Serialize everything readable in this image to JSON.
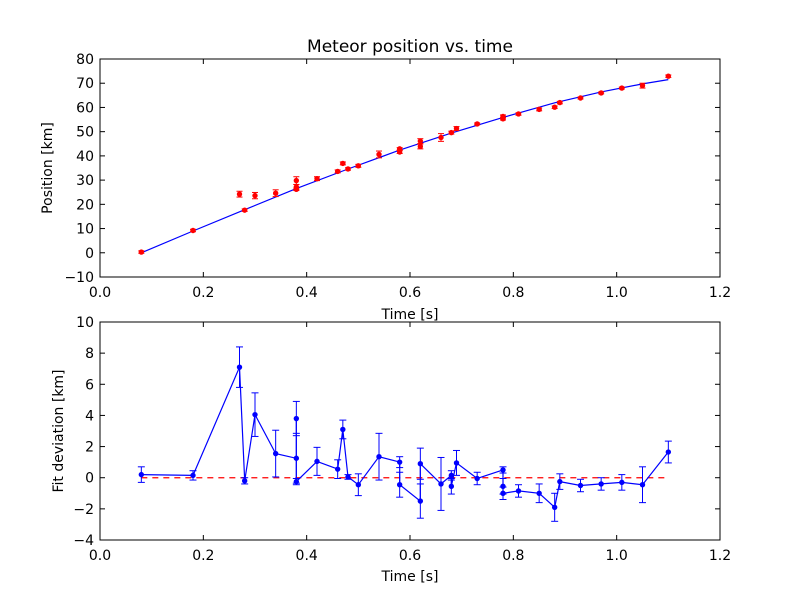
{
  "chart_data": [
    {
      "type": "scatter",
      "title": "Meteor position vs. time",
      "xlabel": "Time [s]",
      "ylabel": "Position [km]",
      "xlim": [
        0.0,
        1.2
      ],
      "ylim": [
        -10,
        80
      ],
      "xticks": [
        "0.0",
        "0.2",
        "0.4",
        "0.6",
        "0.8",
        "1.0",
        "1.2"
      ],
      "yticks": [
        "−10",
        "0",
        "10",
        "20",
        "30",
        "40",
        "50",
        "60",
        "70",
        "80"
      ],
      "grid": false,
      "series": [
        {
          "style": "red points with error bars",
          "color": "#ff0000",
          "points": [
            {
              "x": 0.08,
              "y": 0.3,
              "err": 0.5
            },
            {
              "x": 0.18,
              "y": 9.2,
              "err": 0.5
            },
            {
              "x": 0.27,
              "y": 24.2,
              "err": 1.2
            },
            {
              "x": 0.28,
              "y": 17.6,
              "err": 0.5
            },
            {
              "x": 0.3,
              "y": 23.6,
              "err": 1.3
            },
            {
              "x": 0.34,
              "y": 24.6,
              "err": 1.4
            },
            {
              "x": 0.38,
              "y": 29.8,
              "err": 1.6
            },
            {
              "x": 0.38,
              "y": 27.2,
              "err": 1.0
            },
            {
              "x": 0.38,
              "y": 26.2,
              "err": 0.5
            },
            {
              "x": 0.42,
              "y": 30.6,
              "err": 0.8
            },
            {
              "x": 0.46,
              "y": 33.6,
              "err": 0.6
            },
            {
              "x": 0.47,
              "y": 36.9,
              "err": 0.6
            },
            {
              "x": 0.48,
              "y": 34.6,
              "err": 0.5
            },
            {
              "x": 0.5,
              "y": 35.9,
              "err": 0.6
            },
            {
              "x": 0.54,
              "y": 40.6,
              "err": 1.4
            },
            {
              "x": 0.58,
              "y": 42.9,
              "err": 0.5
            },
            {
              "x": 0.58,
              "y": 41.6,
              "err": 0.6
            },
            {
              "x": 0.62,
              "y": 43.9,
              "err": 1.0
            },
            {
              "x": 0.62,
              "y": 46.1,
              "err": 1.0
            },
            {
              "x": 0.66,
              "y": 47.6,
              "err": 1.6
            },
            {
              "x": 0.68,
              "y": 49.6,
              "err": 0.6
            },
            {
              "x": 0.69,
              "y": 51.3,
              "err": 0.8
            },
            {
              "x": 0.73,
              "y": 53.2,
              "err": 0.4
            },
            {
              "x": 0.78,
              "y": 56.3,
              "err": 0.6
            },
            {
              "x": 0.78,
              "y": 55.3,
              "err": 0.5
            },
            {
              "x": 0.81,
              "y": 57.3,
              "err": 0.5
            },
            {
              "x": 0.85,
              "y": 59.2,
              "err": 0.6
            },
            {
              "x": 0.88,
              "y": 60.1,
              "err": 0.5
            },
            {
              "x": 0.89,
              "y": 62.0,
              "err": 0.5
            },
            {
              "x": 0.93,
              "y": 63.9,
              "err": 0.4
            },
            {
              "x": 0.97,
              "y": 66.0,
              "err": 0.4
            },
            {
              "x": 1.01,
              "y": 68.0,
              "err": 0.4
            },
            {
              "x": 1.05,
              "y": 69.0,
              "err": 1.0
            },
            {
              "x": 1.1,
              "y": 72.9,
              "err": 0.5
            }
          ]
        },
        {
          "style": "blue fit line",
          "color": "#0000ff",
          "x": [
            0.08,
            0.18,
            0.28,
            0.38,
            0.48,
            0.58,
            0.68,
            0.78,
            0.88,
            0.97,
            1.05,
            1.1
          ],
          "y": [
            0.0,
            9.0,
            17.8,
            26.5,
            34.6,
            42.4,
            49.4,
            55.9,
            61.9,
            66.4,
            69.7,
            71.5
          ]
        }
      ]
    },
    {
      "type": "line",
      "xlabel": "Time [s]",
      "ylabel": "Fit deviation [km]",
      "xlim": [
        0.0,
        1.2
      ],
      "ylim": [
        -4,
        10
      ],
      "xticks": [
        "0.0",
        "0.2",
        "0.4",
        "0.6",
        "0.8",
        "1.0",
        "1.2"
      ],
      "yticks": [
        "−4",
        "−2",
        "0",
        "2",
        "4",
        "6",
        "8",
        "10"
      ],
      "grid": false,
      "series": [
        {
          "style": "blue line with points and error bars",
          "color": "#0000ff",
          "points": [
            {
              "x": 0.08,
              "y": 0.2,
              "err": 0.5
            },
            {
              "x": 0.18,
              "y": 0.15,
              "err": 0.3
            },
            {
              "x": 0.27,
              "y": 7.1,
              "err": 1.3
            },
            {
              "x": 0.28,
              "y": -0.2,
              "err": 0.2
            },
            {
              "x": 0.3,
              "y": 4.05,
              "err": 1.4
            },
            {
              "x": 0.34,
              "y": 1.55,
              "err": 1.5
            },
            {
              "x": 0.38,
              "y": 1.25,
              "err": 1.6
            },
            {
              "x": 0.38,
              "y": 3.8,
              "err": 1.1
            },
            {
              "x": 0.38,
              "y": -0.25,
              "err": 0.2
            },
            {
              "x": 0.42,
              "y": 1.05,
              "err": 0.9
            },
            {
              "x": 0.46,
              "y": 0.55,
              "err": 0.6
            },
            {
              "x": 0.47,
              "y": 3.1,
              "err": 0.6
            },
            {
              "x": 0.48,
              "y": 0.05,
              "err": 0.15
            },
            {
              "x": 0.5,
              "y": -0.45,
              "err": 0.7
            },
            {
              "x": 0.54,
              "y": 1.35,
              "err": 1.5
            },
            {
              "x": 0.58,
              "y": 1.0,
              "err": 0.35
            },
            {
              "x": 0.58,
              "y": -0.45,
              "err": 0.8
            },
            {
              "x": 0.62,
              "y": -1.5,
              "err": 1.1
            },
            {
              "x": 0.62,
              "y": 0.9,
              "err": 1.0
            },
            {
              "x": 0.66,
              "y": -0.4,
              "err": 1.7
            },
            {
              "x": 0.68,
              "y": 0.15,
              "err": 0.3
            },
            {
              "x": 0.68,
              "y": -0.55,
              "err": 0.5
            },
            {
              "x": 0.69,
              "y": 0.95,
              "err": 0.8
            },
            {
              "x": 0.73,
              "y": -0.05,
              "err": 0.4
            },
            {
              "x": 0.78,
              "y": 0.5,
              "err": 0.2
            },
            {
              "x": 0.78,
              "y": -0.55,
              "err": 0.5
            },
            {
              "x": 0.78,
              "y": -1.0,
              "err": 0.4
            },
            {
              "x": 0.81,
              "y": -0.85,
              "err": 0.4
            },
            {
              "x": 0.85,
              "y": -1.0,
              "err": 0.6
            },
            {
              "x": 0.88,
              "y": -1.9,
              "err": 0.9
            },
            {
              "x": 0.89,
              "y": -0.25,
              "err": 0.5
            },
            {
              "x": 0.93,
              "y": -0.5,
              "err": 0.4
            },
            {
              "x": 0.97,
              "y": -0.4,
              "err": 0.4
            },
            {
              "x": 1.01,
              "y": -0.3,
              "err": 0.5
            },
            {
              "x": 1.05,
              "y": -0.45,
              "err": 1.15
            },
            {
              "x": 1.1,
              "y": 1.65,
              "err": 0.7
            }
          ]
        },
        {
          "style": "red dashed zero line",
          "color": "#ff0000",
          "x": [
            0.08,
            1.1
          ],
          "y": [
            0,
            0
          ]
        }
      ]
    }
  ]
}
